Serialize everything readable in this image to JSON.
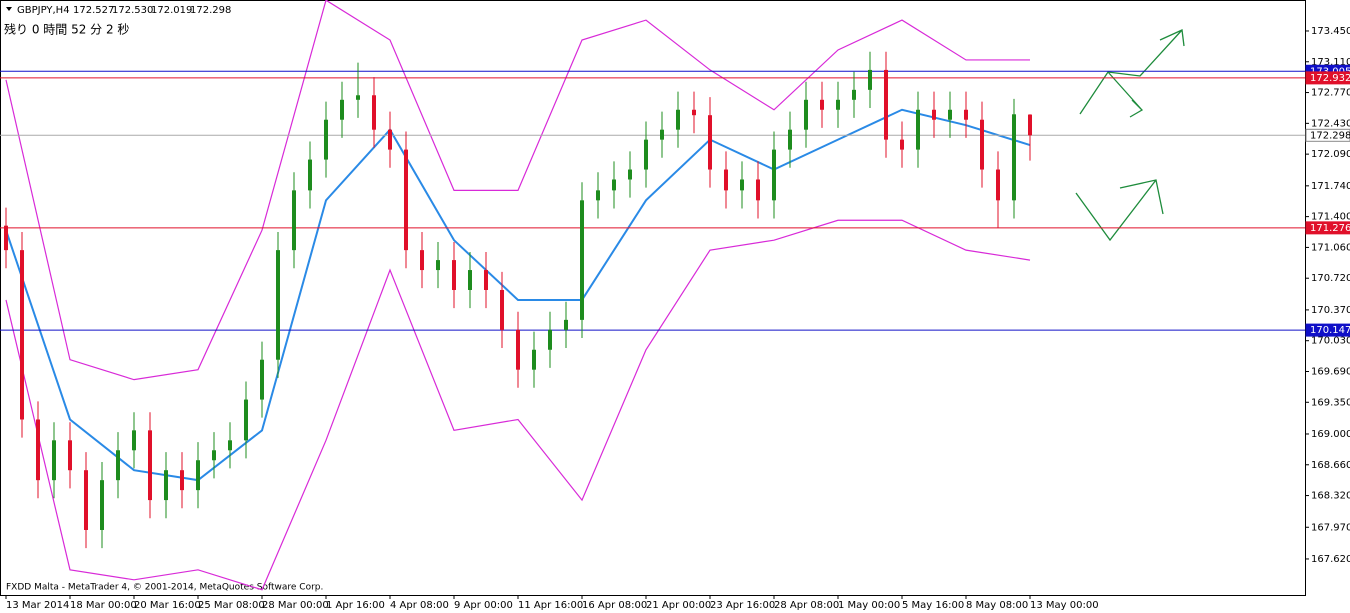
{
  "header": {
    "symbol": "GBPJPY,H4",
    "ohlc": [
      "172.527",
      "172.530",
      "172.019",
      "172.298"
    ],
    "timer": "残り 0 時間 52 分 2 秒"
  },
  "footer": "FXDD Malta - MetaTrader 4, © 2001-2014, MetaQuotes Software Corp.",
  "chart_data": {
    "type": "candlestick",
    "x_labels": [
      "13 Mar 2014",
      "18 Mar 00:00",
      "20 Mar 16:00",
      "25 Mar 08:00",
      "28 Mar 00:00",
      "1 Apr 16:00",
      "4 Apr 08:00",
      "9 Apr 00:00",
      "11 Apr 16:00",
      "16 Apr 08:00",
      "21 Apr 00:00",
      "23 Apr 16:00",
      "28 Apr 08:00",
      "1 May 00:00",
      "5 May 16:00",
      "8 May 08:00",
      "13 May 00:00"
    ],
    "open": [
      171.3,
      171.03,
      169.16,
      168.49,
      168.93,
      168.6,
      167.94,
      168.49,
      168.82,
      169.04,
      168.27,
      168.6,
      168.38,
      168.71,
      168.82,
      168.93,
      169.38,
      169.82,
      171.03,
      171.69,
      172.03,
      172.47,
      172.69,
      172.74,
      172.36,
      172.14,
      171.03,
      170.81,
      170.92,
      170.59,
      170.81,
      170.59,
      170.15,
      169.71,
      169.93,
      170.15,
      170.26,
      171.58,
      171.69,
      171.81,
      171.92,
      172.25,
      172.36,
      172.58,
      172.52,
      171.92,
      171.69,
      171.81,
      171.58,
      172.14,
      172.36,
      172.69,
      172.58,
      172.69,
      172.8,
      173.02,
      172.25,
      172.14,
      172.58,
      172.47,
      172.58,
      172.47,
      171.92,
      171.58,
      172.527
    ],
    "high": [
      171.5,
      171.23,
      169.36,
      169.13,
      169.13,
      168.8,
      168.69,
      169.02,
      169.24,
      169.24,
      168.8,
      168.8,
      168.91,
      169.02,
      169.13,
      169.58,
      170.02,
      171.23,
      171.89,
      172.23,
      172.67,
      172.89,
      173.1,
      172.94,
      172.56,
      172.34,
      171.23,
      171.12,
      171.12,
      171.01,
      171.01,
      170.79,
      170.35,
      170.13,
      170.35,
      170.46,
      171.78,
      171.89,
      172.01,
      172.12,
      172.45,
      172.56,
      172.78,
      172.78,
      172.72,
      172.12,
      172.01,
      172.01,
      172.34,
      172.56,
      172.89,
      172.89,
      172.89,
      173.0,
      173.22,
      173.22,
      172.45,
      172.78,
      172.78,
      172.78,
      172.78,
      172.67,
      172.12,
      172.7,
      172.53
    ],
    "low": [
      170.83,
      168.96,
      168.29,
      168.29,
      168.4,
      167.74,
      167.74,
      168.29,
      168.62,
      168.07,
      168.07,
      168.18,
      168.18,
      168.51,
      168.62,
      168.73,
      169.18,
      169.62,
      170.83,
      171.49,
      171.83,
      172.27,
      172.49,
      172.16,
      171.94,
      170.83,
      170.61,
      170.61,
      170.39,
      170.39,
      170.39,
      169.95,
      169.51,
      169.51,
      169.73,
      169.95,
      170.06,
      171.38,
      171.49,
      171.61,
      171.72,
      172.05,
      172.16,
      172.32,
      171.72,
      171.49,
      171.49,
      171.38,
      171.38,
      171.94,
      172.16,
      172.38,
      172.38,
      172.49,
      172.6,
      172.05,
      171.94,
      171.94,
      172.27,
      172.27,
      172.27,
      171.72,
      171.28,
      171.38,
      172.019
    ],
    "close": [
      171.03,
      169.16,
      168.49,
      168.93,
      168.6,
      167.94,
      168.49,
      168.82,
      169.04,
      168.27,
      168.6,
      168.38,
      168.71,
      168.82,
      168.93,
      169.38,
      169.82,
      171.03,
      171.69,
      172.03,
      172.47,
      172.69,
      172.74,
      172.36,
      172.14,
      171.03,
      170.81,
      170.92,
      170.59,
      170.81,
      170.59,
      170.15,
      169.71,
      169.93,
      170.15,
      170.26,
      171.58,
      171.69,
      171.81,
      171.92,
      172.25,
      172.36,
      172.58,
      172.52,
      171.92,
      171.69,
      171.81,
      171.58,
      172.14,
      172.36,
      172.69,
      172.58,
      172.69,
      172.8,
      173.02,
      172.25,
      172.14,
      172.58,
      172.47,
      172.58,
      172.47,
      171.92,
      171.58,
      172.53,
      172.298
    ],
    "up_color": "#1e8c1e",
    "down_color": "#e0102a",
    "series": [
      {
        "color": "#2a8ae6",
        "values": [
          171.25,
          169.16,
          168.6,
          168.49,
          169.04,
          171.58,
          172.36,
          171.14,
          170.48,
          170.48,
          171.58,
          172.25,
          171.92,
          172.25,
          172.58,
          172.41,
          172.19
        ]
      },
      {
        "color": "#d82ad8",
        "values": [
          172.91,
          169.82,
          169.6,
          169.71,
          171.25,
          173.79,
          173.35,
          171.69,
          171.69,
          173.35,
          173.57,
          173.02,
          172.58,
          173.24,
          173.57,
          173.13,
          173.13
        ]
      },
      {
        "color": "#d82ad8",
        "values": [
          170.48,
          167.5,
          167.39,
          167.5,
          167.28,
          168.93,
          170.81,
          169.04,
          169.16,
          168.27,
          169.93,
          171.03,
          171.14,
          171.36,
          171.36,
          171.03,
          170.92
        ]
      }
    ],
    "levels": [
      {
        "value": 173.005,
        "color": "#1010c8"
      },
      {
        "value": 172.932,
        "color": "#e0102a"
      },
      {
        "value": 172.298,
        "color": "#aaaaaa"
      },
      {
        "value": 171.276,
        "color": "#e0102a"
      },
      {
        "value": 170.147,
        "color": "#1010c8"
      }
    ],
    "ylim": [
      167.222,
      173.792
    ],
    "yticks": [
      {
        "value": 173.45,
        "label": "173.450"
      },
      {
        "value": 173.11,
        "label": "173.110"
      },
      {
        "value": 172.77,
        "label": "172.770"
      },
      {
        "value": 172.43,
        "label": "172.430"
      },
      {
        "value": 172.09,
        "label": "172.090"
      },
      {
        "value": 171.74,
        "label": "171.740"
      },
      {
        "value": 171.4,
        "label": "171.400"
      },
      {
        "value": 171.06,
        "label": "171.060"
      },
      {
        "value": 170.72,
        "label": "170.720"
      },
      {
        "value": 170.37,
        "label": "170.370"
      },
      {
        "value": 170.03,
        "label": "170.030"
      },
      {
        "value": 169.69,
        "label": "169.690"
      },
      {
        "value": 169.35,
        "label": "169.350"
      },
      {
        "value": 169.0,
        "label": "169.000"
      },
      {
        "value": 168.66,
        "label": "168.660"
      },
      {
        "value": 168.32,
        "label": "168.320"
      },
      {
        "value": 167.97,
        "label": "167.970"
      },
      {
        "value": 167.62,
        "label": "167.620"
      }
    ]
  }
}
